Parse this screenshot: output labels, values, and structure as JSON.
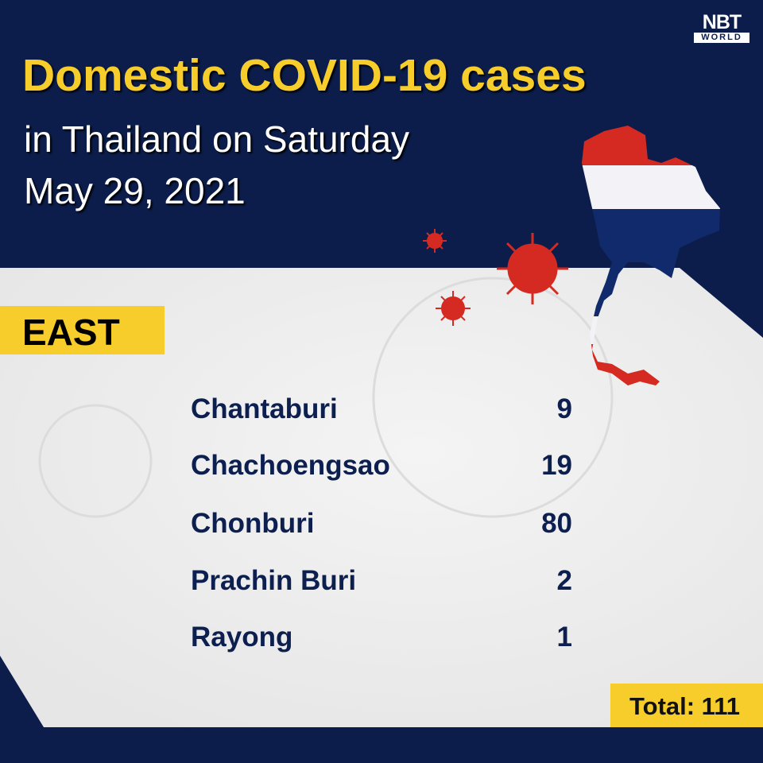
{
  "brand": {
    "logo_text": "NBT",
    "logo_sub": "WORLD"
  },
  "header": {
    "title": "Domestic COVID-19 cases",
    "subtitle_line1": "in Thailand on Saturday",
    "subtitle_line2": "May 29, 2021"
  },
  "region": {
    "label": "EAST"
  },
  "provinces": [
    {
      "name": "Chantaburi",
      "cases": "9"
    },
    {
      "name": "Chachoengsao",
      "cases": "19"
    },
    {
      "name": "Chonburi",
      "cases": "80"
    },
    {
      "name": "Prachin Buri",
      "cases": "2"
    },
    {
      "name": "Rayong",
      "cases": "1"
    }
  ],
  "total": {
    "label": "Total: 111"
  },
  "colors": {
    "navy": "#0c1d4b",
    "yellow": "#f6cd2a",
    "virus_red": "#d42a22",
    "flag_red": "#d42a22",
    "flag_white": "#f2f2f7",
    "flag_blue": "#102a6b"
  },
  "icons": [
    "virus-icon",
    "thailand-flag-map"
  ]
}
